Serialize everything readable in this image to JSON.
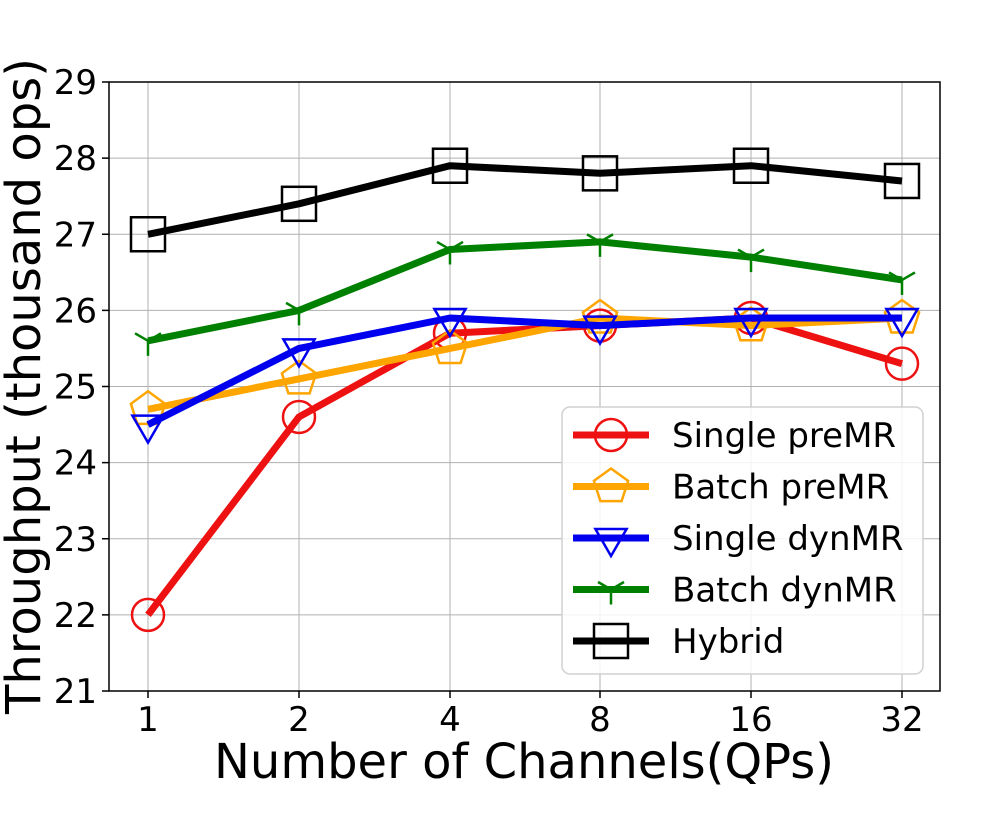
{
  "chart_data": {
    "type": "line",
    "title": "",
    "xlabel": "Number of Channels(QPs)",
    "ylabel": "Throughput (thousand ops)",
    "categories": [
      "1",
      "2",
      "4",
      "8",
      "16",
      "32"
    ],
    "ylim": [
      21,
      29
    ],
    "yticks": [
      "21",
      "22",
      "23",
      "24",
      "25",
      "26",
      "27",
      "28",
      "29"
    ],
    "grid": true,
    "legend_position": "lower-right",
    "series": [
      {
        "name": "Single preMR",
        "color": "#ee1111",
        "marker": "circle",
        "values": [
          22.0,
          24.6,
          25.7,
          25.8,
          25.9,
          25.3
        ]
      },
      {
        "name": "Batch preMR",
        "color": "#ffa500",
        "marker": "pentagon",
        "values": [
          24.7,
          25.1,
          25.5,
          25.9,
          25.8,
          25.9
        ]
      },
      {
        "name": "Single dynMR",
        "color": "#0000ee",
        "marker": "triangle-down",
        "values": [
          24.5,
          25.5,
          25.9,
          25.8,
          25.9,
          25.9
        ]
      },
      {
        "name": "Batch dynMR",
        "color": "#008000",
        "marker": "tri",
        "values": [
          25.6,
          26.0,
          26.8,
          26.9,
          26.7,
          26.4
        ]
      },
      {
        "name": "Hybrid",
        "color": "#000000",
        "marker": "square",
        "values": [
          27.0,
          27.4,
          27.9,
          27.8,
          27.9,
          27.7
        ]
      }
    ]
  }
}
